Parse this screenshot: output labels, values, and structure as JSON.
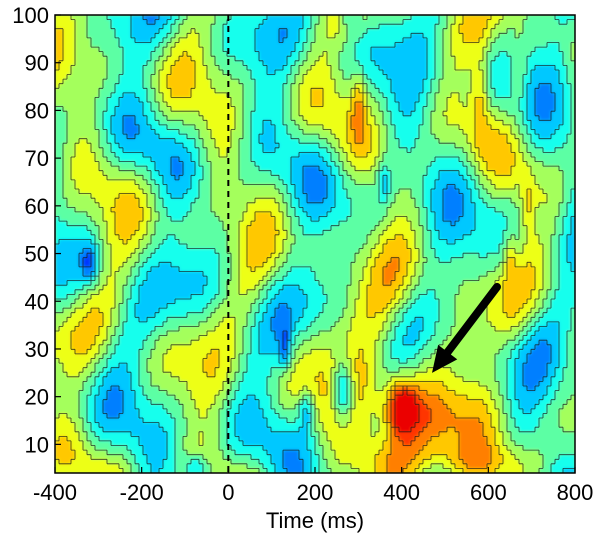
{
  "chart_data": {
    "type": "heatmap",
    "title": "",
    "xlabel": "Time (ms)",
    "ylabel": "",
    "xlim": [
      -400,
      800
    ],
    "ylim": [
      4,
      100
    ],
    "x_ticks": [
      -400,
      -200,
      0,
      200,
      400,
      600,
      800
    ],
    "y_ticks": [
      10,
      20,
      30,
      40,
      50,
      60,
      70,
      80,
      90,
      100
    ],
    "grid": false,
    "legend": "none",
    "colormap": "jet",
    "value_range": [
      -1,
      1
    ],
    "vertical_reference_line": {
      "x": 0,
      "style": "dashed"
    },
    "arrow_annotation": {
      "from": [
        620,
        43
      ],
      "to": [
        470,
        25
      ]
    },
    "features": [
      {
        "kind": "peak",
        "x": 400,
        "y": 18,
        "value": 0.95,
        "sx": 25,
        "sy": 4
      },
      {
        "kind": "peak",
        "x": 400,
        "y": 8,
        "value": 0.55,
        "sx": 60,
        "sy": 6
      },
      {
        "kind": "peak",
        "x": 360,
        "y": 28,
        "value": 0.3,
        "sx": 110,
        "sy": 10
      },
      {
        "kind": "peak",
        "x": 470,
        "y": 14,
        "value": 0.35,
        "sx": 50,
        "sy": 5
      },
      {
        "kind": "peak",
        "x": 520,
        "y": 6,
        "value": 0.4,
        "sx": 120,
        "sy": 3
      },
      {
        "kind": "trough",
        "x": 265,
        "y": 21,
        "value": -0.8,
        "sx": 18,
        "sy": 5
      },
      {
        "kind": "trough",
        "x": 180,
        "y": 17,
        "value": -0.5,
        "sx": 12,
        "sy": 3
      },
      {
        "kind": "trough",
        "x": -320,
        "y": 48,
        "value": -0.5,
        "sx": 14,
        "sy": 3
      },
      {
        "kind": "trough",
        "x": 130,
        "y": 30,
        "value": -0.5,
        "sx": 10,
        "sy": 3
      },
      {
        "kind": "trough",
        "x": 360,
        "y": 65,
        "value": -0.4,
        "sx": 10,
        "sy": 3
      },
      {
        "kind": "trough",
        "x": -70,
        "y": 5,
        "value": -0.5,
        "sx": 20,
        "sy": 2
      },
      {
        "kind": "trough",
        "x": 280,
        "y": 100,
        "value": -0.4,
        "sx": 15,
        "sy": 2
      },
      {
        "kind": "peak",
        "x": 300,
        "y": 82,
        "value": 0.4,
        "sx": 12,
        "sy": 5
      },
      {
        "kind": "peak",
        "x": 580,
        "y": 83,
        "value": 0.4,
        "sx": 15,
        "sy": 6
      },
      {
        "kind": "peak",
        "x": 670,
        "y": 88,
        "value": 0.3,
        "sx": 15,
        "sy": 5
      },
      {
        "kind": "peak",
        "x": 650,
        "y": 49,
        "value": 0.3,
        "sx": 10,
        "sy": 4
      },
      {
        "kind": "peak",
        "x": 690,
        "y": 60,
        "value": 0.3,
        "sx": 10,
        "sy": 4
      }
    ]
  }
}
